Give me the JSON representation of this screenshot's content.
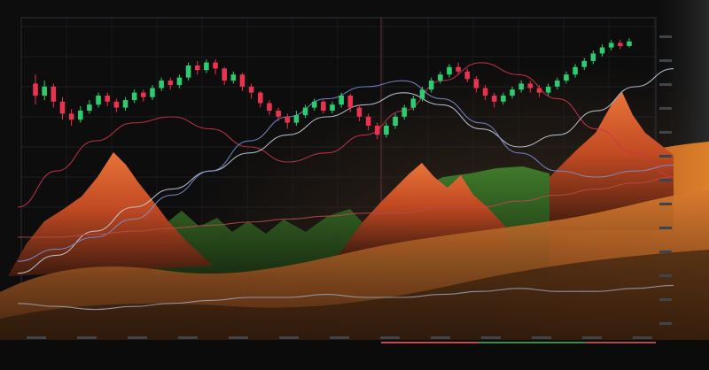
{
  "chart_data": {
    "type": "line",
    "title": "",
    "xlabel": "",
    "ylabel": "",
    "grid": true,
    "legend": "none",
    "ylim": [
      0,
      100
    ],
    "candles": {
      "colors": {
        "up": "#2ecc71",
        "down": "#e8344f"
      },
      "values": [
        {
          "o": 68,
          "c": 60,
          "h": 74,
          "l": 54
        },
        {
          "o": 60,
          "c": 66,
          "h": 70,
          "l": 57
        },
        {
          "o": 66,
          "c": 56,
          "h": 68,
          "l": 52
        },
        {
          "o": 56,
          "c": 48,
          "h": 59,
          "l": 44
        },
        {
          "o": 48,
          "c": 44,
          "h": 51,
          "l": 40
        },
        {
          "o": 44,
          "c": 50,
          "h": 53,
          "l": 42
        },
        {
          "o": 50,
          "c": 54,
          "h": 57,
          "l": 48
        },
        {
          "o": 54,
          "c": 60,
          "h": 62,
          "l": 52
        },
        {
          "o": 60,
          "c": 56,
          "h": 62,
          "l": 53
        },
        {
          "o": 56,
          "c": 52,
          "h": 58,
          "l": 49
        },
        {
          "o": 52,
          "c": 57,
          "h": 59,
          "l": 50
        },
        {
          "o": 57,
          "c": 62,
          "h": 64,
          "l": 55
        },
        {
          "o": 62,
          "c": 59,
          "h": 64,
          "l": 56
        },
        {
          "o": 59,
          "c": 65,
          "h": 67,
          "l": 57
        },
        {
          "o": 65,
          "c": 70,
          "h": 72,
          "l": 63
        },
        {
          "o": 70,
          "c": 67,
          "h": 72,
          "l": 64
        },
        {
          "o": 67,
          "c": 72,
          "h": 74,
          "l": 65
        },
        {
          "o": 72,
          "c": 80,
          "h": 82,
          "l": 70
        },
        {
          "o": 80,
          "c": 77,
          "h": 83,
          "l": 74
        },
        {
          "o": 77,
          "c": 82,
          "h": 84,
          "l": 75
        },
        {
          "o": 82,
          "c": 78,
          "h": 84,
          "l": 74
        },
        {
          "o": 78,
          "c": 70,
          "h": 79,
          "l": 67
        },
        {
          "o": 70,
          "c": 74,
          "h": 76,
          "l": 68
        },
        {
          "o": 74,
          "c": 66,
          "h": 75,
          "l": 63
        },
        {
          "o": 66,
          "c": 62,
          "h": 68,
          "l": 58
        },
        {
          "o": 62,
          "c": 55,
          "h": 63,
          "l": 52
        },
        {
          "o": 55,
          "c": 50,
          "h": 57,
          "l": 47
        },
        {
          "o": 50,
          "c": 46,
          "h": 52,
          "l": 43
        },
        {
          "o": 46,
          "c": 42,
          "h": 48,
          "l": 38
        },
        {
          "o": 42,
          "c": 47,
          "h": 50,
          "l": 40
        },
        {
          "o": 47,
          "c": 52,
          "h": 54,
          "l": 45
        },
        {
          "o": 52,
          "c": 56,
          "h": 58,
          "l": 50
        },
        {
          "o": 56,
          "c": 50,
          "h": 57,
          "l": 48
        },
        {
          "o": 50,
          "c": 54,
          "h": 56,
          "l": 48
        },
        {
          "o": 54,
          "c": 60,
          "h": 62,
          "l": 52
        },
        {
          "o": 60,
          "c": 52,
          "h": 61,
          "l": 49
        },
        {
          "o": 52,
          "c": 46,
          "h": 54,
          "l": 43
        },
        {
          "o": 46,
          "c": 40,
          "h": 48,
          "l": 37
        },
        {
          "o": 40,
          "c": 34,
          "h": 42,
          "l": 31
        },
        {
          "o": 34,
          "c": 40,
          "h": 42,
          "l": 32
        },
        {
          "o": 40,
          "c": 46,
          "h": 48,
          "l": 38
        },
        {
          "o": 46,
          "c": 52,
          "h": 54,
          "l": 44
        },
        {
          "o": 52,
          "c": 58,
          "h": 60,
          "l": 50
        },
        {
          "o": 58,
          "c": 64,
          "h": 66,
          "l": 56
        },
        {
          "o": 64,
          "c": 70,
          "h": 72,
          "l": 62
        },
        {
          "o": 70,
          "c": 74,
          "h": 76,
          "l": 68
        },
        {
          "o": 74,
          "c": 79,
          "h": 81,
          "l": 72
        },
        {
          "o": 79,
          "c": 76,
          "h": 82,
          "l": 74
        },
        {
          "o": 76,
          "c": 71,
          "h": 78,
          "l": 69
        },
        {
          "o": 71,
          "c": 65,
          "h": 73,
          "l": 62
        },
        {
          "o": 65,
          "c": 60,
          "h": 67,
          "l": 57
        },
        {
          "o": 60,
          "c": 56,
          "h": 62,
          "l": 52
        },
        {
          "o": 56,
          "c": 60,
          "h": 62,
          "l": 54
        },
        {
          "o": 60,
          "c": 64,
          "h": 66,
          "l": 58
        },
        {
          "o": 64,
          "c": 68,
          "h": 70,
          "l": 62
        },
        {
          "o": 68,
          "c": 65,
          "h": 70,
          "l": 62
        },
        {
          "o": 65,
          "c": 62,
          "h": 67,
          "l": 59
        },
        {
          "o": 62,
          "c": 66,
          "h": 68,
          "l": 60
        },
        {
          "o": 66,
          "c": 70,
          "h": 72,
          "l": 64
        },
        {
          "o": 70,
          "c": 74,
          "h": 76,
          "l": 68
        },
        {
          "o": 74,
          "c": 79,
          "h": 81,
          "l": 72
        },
        {
          "o": 79,
          "c": 83,
          "h": 85,
          "l": 77
        },
        {
          "o": 83,
          "c": 88,
          "h": 90,
          "l": 81
        },
        {
          "o": 88,
          "c": 92,
          "h": 94,
          "l": 86
        },
        {
          "o": 92,
          "c": 95,
          "h": 97,
          "l": 90
        },
        {
          "o": 95,
          "c": 93,
          "h": 97,
          "l": 91
        },
        {
          "o": 93,
          "c": 96,
          "h": 98,
          "l": 92
        }
      ]
    },
    "series": [
      {
        "color": "#d0344a",
        "values": [
          40,
          52,
          62,
          68,
          70,
          66,
          60,
          55,
          58,
          64,
          72,
          82,
          88,
          84,
          76,
          66,
          58,
          50
        ]
      },
      {
        "color": "#c7d0e0",
        "values": [
          18,
          24,
          32,
          40,
          46,
          52,
          58,
          64,
          70,
          74,
          78,
          74,
          66,
          60,
          64,
          72,
          80,
          86
        ]
      },
      {
        "color": "#7e8fd6",
        "values": [
          22,
          26,
          30,
          36,
          44,
          52,
          62,
          70,
          76,
          80,
          82,
          76,
          68,
          58,
          52,
          50,
          52,
          54
        ]
      },
      {
        "color": "#b74a4a",
        "values": [
          30,
          30,
          31,
          32,
          33,
          34,
          35,
          36,
          37,
          38,
          38,
          40,
          40,
          42,
          44,
          46,
          48,
          50
        ]
      },
      {
        "color": "#9aa4b8",
        "values": [
          8,
          7,
          6,
          7,
          8,
          9,
          10,
          10,
          11,
          10,
          10,
          11,
          12,
          13,
          12,
          12,
          13,
          14
        ]
      }
    ],
    "x_ticks": [
      "",
      "",
      "",
      "",
      "",
      "",
      "",
      "",
      "",
      "",
      "",
      "",
      ""
    ],
    "y_ticks": [
      "",
      "",
      "",
      "",
      "",
      "",
      "",
      "",
      "",
      "",
      "",
      "",
      ""
    ]
  }
}
